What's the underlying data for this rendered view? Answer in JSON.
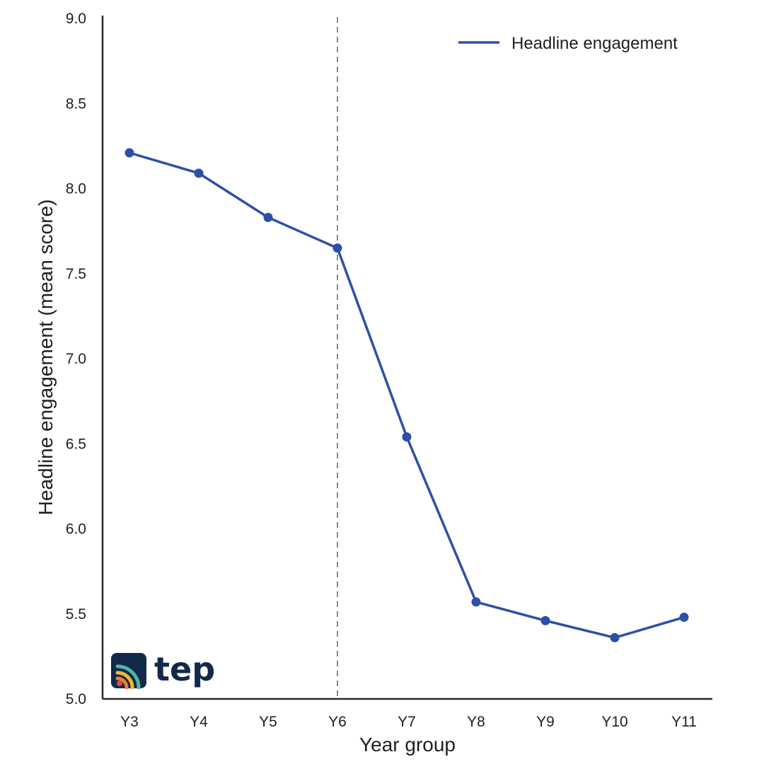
{
  "chart_data": {
    "type": "line",
    "categories": [
      "Y3",
      "Y4",
      "Y5",
      "Y6",
      "Y7",
      "Y8",
      "Y9",
      "Y10",
      "Y11"
    ],
    "series": [
      {
        "name": "Headline engagement",
        "values": [
          8.21,
          8.09,
          7.83,
          7.65,
          6.54,
          5.57,
          5.46,
          5.36,
          5.48
        ]
      }
    ],
    "xlabel": "Year group",
    "ylabel": "Headline engagement (mean score)",
    "ylim": [
      5.0,
      9.0
    ],
    "yticks": [
      "5.0",
      "5.5",
      "6.0",
      "6.5",
      "7.0",
      "7.5",
      "8.0",
      "8.5",
      "9.0"
    ],
    "reference_line": {
      "category": "Y6",
      "style": "dashed"
    },
    "legend_position": "top-right",
    "grid": false,
    "line_color": "#2e4fa6",
    "logo_text": "tep"
  }
}
